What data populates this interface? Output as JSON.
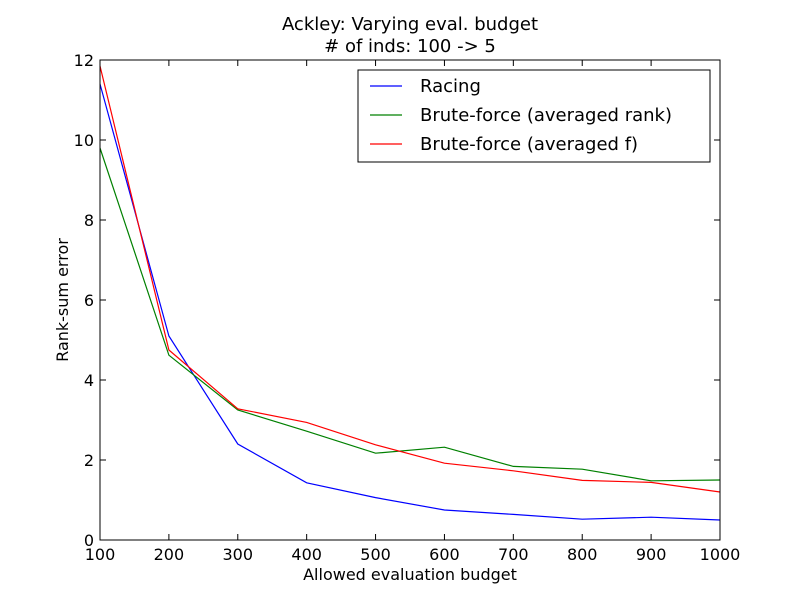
{
  "chart_data": {
    "type": "line",
    "title": "Ackley: Varying eval. budget",
    "subtitle": "# of inds: 100 -> 5",
    "xlabel": "Allowed evaluation budget",
    "ylabel": "Rank-sum error",
    "xlim": [
      100,
      1000
    ],
    "ylim": [
      0,
      12
    ],
    "xticks": [
      100,
      200,
      300,
      400,
      500,
      600,
      700,
      800,
      900,
      1000
    ],
    "yticks": [
      0,
      2,
      4,
      6,
      8,
      10,
      12
    ],
    "grid": false,
    "legend_position": "top-right",
    "x": [
      100,
      200,
      300,
      400,
      500,
      600,
      700,
      800,
      900,
      1000
    ],
    "series": [
      {
        "name": "Racing",
        "color": "#0000ff",
        "values": [
          11.4,
          5.1,
          2.4,
          1.43,
          1.06,
          0.75,
          0.64,
          0.52,
          0.57,
          0.5
        ]
      },
      {
        "name": "Brute-force (averaged rank)",
        "color": "#008000",
        "values": [
          9.8,
          4.62,
          3.25,
          2.72,
          2.17,
          2.32,
          1.84,
          1.77,
          1.48,
          1.5
        ]
      },
      {
        "name": "Brute-force (averaged f)",
        "color": "#ff0000",
        "values": [
          11.85,
          4.75,
          3.28,
          2.94,
          2.38,
          1.92,
          1.73,
          1.49,
          1.44,
          1.2
        ]
      }
    ]
  }
}
